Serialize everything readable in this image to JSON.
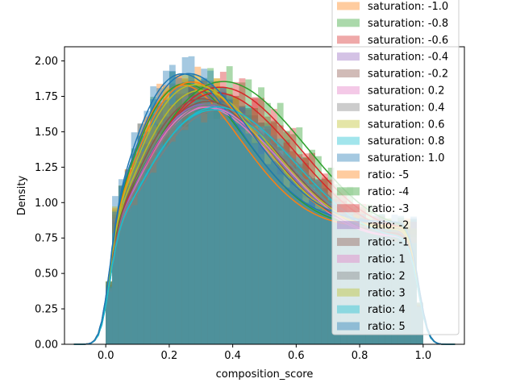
{
  "chart_data": {
    "type": "histogram",
    "xlabel": "composition_score",
    "ylabel": "Density",
    "xlim": [
      -0.13,
      1.13
    ],
    "ylim": [
      0,
      2.1
    ],
    "xticks": [
      0.0,
      0.2,
      0.4,
      0.6,
      0.8,
      1.0
    ],
    "xtick_labels": [
      "0.0",
      "0.2",
      "0.4",
      "0.6",
      "0.8",
      "1.0"
    ],
    "yticks": [
      0.0,
      0.25,
      0.5,
      0.75,
      1.0,
      1.25,
      1.5,
      1.75,
      2.0
    ],
    "ytick_labels": [
      "0.00",
      "0.25",
      "0.50",
      "0.75",
      "1.00",
      "1.25",
      "1.50",
      "1.75",
      "2.00"
    ],
    "legend_placement": "right (partially above axes)",
    "grid": false,
    "series": [
      {
        "name": "saturation: -1.0",
        "color": "#ff7f0e",
        "mode": 0.24,
        "peak": 1.84
      },
      {
        "name": "saturation: -0.8",
        "color": "#2ca02c",
        "mode": 0.25,
        "peak": 1.85
      },
      {
        "name": "saturation: -0.6",
        "color": "#d62728",
        "mode": 0.35,
        "peak": 1.78
      },
      {
        "name": "saturation: -0.4",
        "color": "#9467bd",
        "mode": 0.33,
        "peak": 1.7
      },
      {
        "name": "saturation: -0.2",
        "color": "#8c564b",
        "mode": 0.32,
        "peak": 1.72
      },
      {
        "name": "saturation: 0.2",
        "color": "#e377c2",
        "mode": 0.31,
        "peak": 1.68
      },
      {
        "name": "saturation: 0.4",
        "color": "#7f7f7f",
        "mode": 0.36,
        "peak": 1.66
      },
      {
        "name": "saturation: 0.6",
        "color": "#bcbd22",
        "mode": 0.3,
        "peak": 1.8
      },
      {
        "name": "saturation: 0.8",
        "color": "#17becf",
        "mode": 0.34,
        "peak": 1.66
      },
      {
        "name": "saturation: 1.0",
        "color": "#1f77b4",
        "mode": 0.24,
        "peak": 1.92
      },
      {
        "name": "ratio: -5",
        "color": "#ff7f0e",
        "mode": 0.27,
        "peak": 1.86
      },
      {
        "name": "ratio: -4",
        "color": "#2ca02c",
        "mode": 0.37,
        "peak": 1.86
      },
      {
        "name": "ratio: -3",
        "color": "#d62728",
        "mode": 0.36,
        "peak": 1.82
      },
      {
        "name": "ratio: -2",
        "color": "#9467bd",
        "mode": 0.31,
        "peak": 1.7
      },
      {
        "name": "ratio: -1",
        "color": "#8c564b",
        "mode": 0.3,
        "peak": 1.74
      },
      {
        "name": "ratio: 1",
        "color": "#e377c2",
        "mode": 0.32,
        "peak": 1.68
      },
      {
        "name": "ratio: 2",
        "color": "#7f7f7f",
        "mode": 0.33,
        "peak": 1.7
      },
      {
        "name": "ratio: 3",
        "color": "#bcbd22",
        "mode": 0.28,
        "peak": 1.84
      },
      {
        "name": "ratio: 4",
        "color": "#17becf",
        "mode": 0.35,
        "peak": 1.68
      },
      {
        "name": "ratio: 5",
        "color": "#1f77b4",
        "mode": 0.26,
        "peak": 1.92
      }
    ]
  }
}
